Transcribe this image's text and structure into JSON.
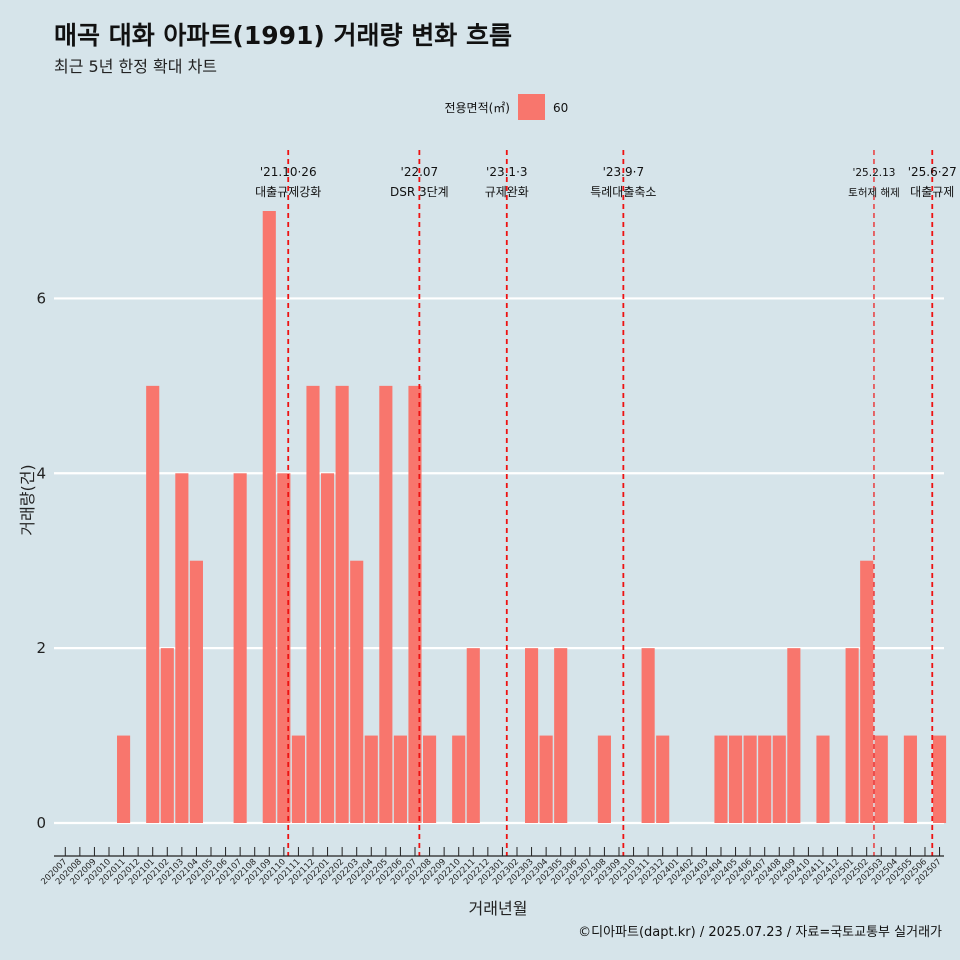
{
  "title": "매곡 대화 아파트(1991) 거래량 변화 흐름",
  "subtitle": "최근 5년 한정 확대 차트",
  "legend": {
    "title": "전용면적(㎡)",
    "label": "60",
    "color": "#f8766d"
  },
  "caption": "©디아파트(dapt.kr) / 2025.07.23 / 자료=국토교통부 실거래가",
  "chart_data": {
    "type": "bar",
    "xlabel": "거래년월",
    "ylabel": "거래량(건)",
    "ylim": [
      0,
      7
    ],
    "yticks": [
      0,
      2,
      4,
      6
    ],
    "categories": [
      "202007",
      "202008",
      "202009",
      "202010",
      "202011",
      "202012",
      "202101",
      "202102",
      "202103",
      "202104",
      "202105",
      "202106",
      "202107",
      "202108",
      "202109",
      "202110",
      "202111",
      "202112",
      "202201",
      "202202",
      "202203",
      "202204",
      "202205",
      "202206",
      "202207",
      "202208",
      "202209",
      "202210",
      "202211",
      "202212",
      "202301",
      "202302",
      "202303",
      "202304",
      "202305",
      "202306",
      "202307",
      "202308",
      "202309",
      "202310",
      "202311",
      "202312",
      "202401",
      "202402",
      "202403",
      "202404",
      "202405",
      "202406",
      "202407",
      "202408",
      "202409",
      "202410",
      "202411",
      "202412",
      "202501",
      "202502",
      "202503",
      "202504",
      "202505",
      "202506",
      "202507"
    ],
    "series": [
      {
        "name": "60",
        "color": "#f8766d",
        "values": [
          0,
          0,
          0,
          0,
          1,
          0,
          5,
          2,
          4,
          3,
          0,
          0,
          4,
          0,
          7,
          4,
          1,
          5,
          4,
          5,
          3,
          1,
          5,
          1,
          5,
          1,
          0,
          1,
          2,
          0,
          0,
          0,
          2,
          1,
          2,
          0,
          0,
          1,
          0,
          0,
          2,
          1,
          0,
          0,
          0,
          1,
          1,
          1,
          1,
          1,
          2,
          0,
          1,
          0,
          2,
          3,
          1,
          0,
          1,
          0,
          1
        ]
      }
    ],
    "annotations": [
      {
        "date": "'21.10·26",
        "label": "대출규제강화",
        "position": 15.3
      },
      {
        "date": "'22.07",
        "label": "DSR 3단계",
        "position": 24.3
      },
      {
        "date": "'23.1·3",
        "label": "규제완화",
        "position": 30.3
      },
      {
        "date": "'23.9·7",
        "label": "특례대출축소",
        "position": 38.3
      },
      {
        "date": "'25.2.13",
        "label": "토허제 해제",
        "position": 55.5,
        "small": true
      },
      {
        "date": "'25.6·27",
        "label": "대출규제",
        "position": 59.5
      }
    ],
    "grid": true,
    "legend_position": "top"
  }
}
